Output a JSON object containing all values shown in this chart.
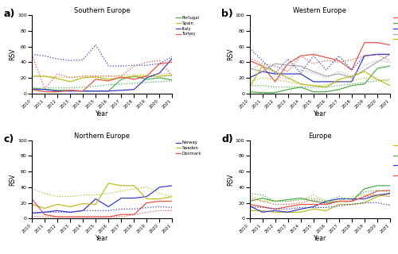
{
  "years": [
    2010,
    2011,
    2012,
    2013,
    2014,
    2015,
    2016,
    2017,
    2018,
    2019,
    2020,
    2021
  ],
  "panel_a": {
    "title": "Southern Europe",
    "solid": {
      "Portugal": {
        "color": "#4daf4a",
        "values": [
          7,
          5,
          4,
          4,
          3,
          3,
          3,
          18,
          22,
          18,
          20,
          17
        ]
      },
      "Spain": {
        "color": "#bcbd22",
        "values": [
          22,
          22,
          19,
          15,
          20,
          21,
          18,
          20,
          22,
          22,
          22,
          23
        ]
      },
      "Italy": {
        "color": "#3a3acc",
        "values": [
          5,
          5,
          3,
          3,
          3,
          3,
          3,
          4,
          5,
          20,
          26,
          45
        ]
      },
      "Turkey": {
        "color": "#e8534a",
        "values": [
          5,
          2,
          2,
          4,
          3,
          18,
          16,
          21,
          18,
          22,
          38,
          40
        ]
      }
    },
    "dotted": {
      "Portugal": {
        "color": "#4daf4a",
        "values": [
          6,
          7,
          7,
          7,
          8,
          9,
          11,
          12,
          13,
          14,
          15,
          16
        ]
      },
      "Spain": {
        "color": "#bcbd22",
        "values": [
          22,
          22,
          21,
          21,
          22,
          22,
          22,
          23,
          24,
          24,
          25,
          25
        ]
      },
      "Italy": {
        "color": "#3a3acc",
        "values": [
          50,
          48,
          44,
          42,
          43,
          62,
          35,
          35,
          36,
          36,
          38,
          47
        ]
      },
      "Turkey": {
        "color": "#e8534a",
        "values": [
          50,
          6,
          25,
          20,
          22,
          22,
          22,
          22,
          35,
          40,
          42,
          22
        ]
      }
    }
  },
  "panel_b": {
    "title": "Western Europe",
    "solid": {
      "UK": {
        "color": "#e8534a",
        "values": [
          42,
          35,
          15,
          38,
          48,
          50,
          46,
          42,
          30,
          65,
          65,
          62
        ]
      },
      "Ireland": {
        "color": "#4daf4a",
        "values": [
          2,
          1,
          1,
          5,
          8,
          2,
          2,
          5,
          10,
          12,
          32,
          35
        ]
      },
      "France": {
        "color": "#3a3acc",
        "values": [
          20,
          28,
          25,
          25,
          25,
          15,
          15,
          15,
          15,
          48,
          50,
          50
        ]
      },
      "Germany": {
        "color": "#aaaaaa",
        "values": [
          32,
          28,
          38,
          36,
          35,
          28,
          22,
          25,
          20,
          30,
          40,
          50
        ]
      },
      "Netherlands": {
        "color": "#bcbd22",
        "values": [
          8,
          35,
          28,
          20,
          12,
          10,
          8,
          18,
          22,
          28,
          18,
          10
        ]
      }
    },
    "dotted": {
      "UK": {
        "color": "#e8534a",
        "values": [
          45,
          38,
          35,
          28,
          48,
          38,
          42,
          40,
          43,
          48,
          50,
          42
        ]
      },
      "Ireland": {
        "color": "#4daf4a",
        "values": [
          10,
          10,
          8,
          8,
          8,
          8,
          8,
          10,
          12,
          14,
          16,
          18
        ]
      },
      "France": {
        "color": "#3a3acc",
        "values": [
          58,
          42,
          26,
          44,
          26,
          48,
          30,
          48,
          30,
          48,
          50,
          50
        ]
      },
      "Germany": {
        "color": "#aaaaaa",
        "values": [
          30,
          38,
          22,
          18,
          30,
          26,
          20,
          28,
          22,
          36,
          42,
          40
        ]
      },
      "Netherlands": {
        "color": "#bcbd22",
        "values": [
          15,
          20,
          18,
          15,
          12,
          10,
          10,
          15,
          16,
          20,
          18,
          15
        ]
      }
    }
  },
  "panel_c": {
    "title": "Northern Europe",
    "solid": {
      "Norway": {
        "color": "#3a3acc",
        "values": [
          7,
          8,
          10,
          8,
          10,
          25,
          15,
          26,
          26,
          28,
          40,
          42
        ]
      },
      "Sweden": {
        "color": "#bcbd22",
        "values": [
          18,
          13,
          18,
          15,
          19,
          18,
          45,
          42,
          42,
          25,
          25,
          28
        ]
      },
      "Denmark": {
        "color": "#e8534a",
        "values": [
          25,
          5,
          2,
          2,
          2,
          2,
          2,
          5,
          5,
          20,
          22,
          22
        ]
      }
    },
    "dotted": {
      "Norway": {
        "color": "#3a3acc",
        "values": [
          6,
          8,
          8,
          8,
          10,
          10,
          10,
          12,
          12,
          14,
          15,
          14
        ]
      },
      "Sweden": {
        "color": "#bcbd22",
        "values": [
          38,
          32,
          28,
          28,
          30,
          30,
          32,
          35,
          38,
          40,
          32,
          28
        ]
      },
      "Denmark": {
        "color": "#e8534a",
        "values": [
          3,
          2,
          2,
          2,
          2,
          2,
          2,
          2,
          5,
          8,
          10,
          10
        ]
      }
    }
  },
  "panel_d": {
    "title": "Europe",
    "solid": {
      "Southern\nEurope": {
        "color": "#bcbd22",
        "values": [
          10,
          10,
          8,
          8,
          8,
          12,
          10,
          18,
          18,
          20,
          28,
          32
        ]
      },
      "Western\nEurope": {
        "color": "#4daf4a",
        "values": [
          22,
          26,
          22,
          24,
          26,
          22,
          20,
          22,
          22,
          38,
          42,
          42
        ]
      },
      "Northern\nEurope": {
        "color": "#3a3acc",
        "values": [
          16,
          8,
          10,
          8,
          12,
          15,
          22,
          25,
          25,
          25,
          30,
          32
        ]
      },
      "Mean\n(All regions)": {
        "color": "#e8534a",
        "values": [
          18,
          15,
          12,
          15,
          18,
          18,
          18,
          22,
          22,
          28,
          35,
          36
        ]
      }
    },
    "dotted": {
      "Southern\nEurope": {
        "color": "#bcbd22",
        "values": [
          30,
          22,
          22,
          22,
          24,
          30,
          22,
          22,
          28,
          30,
          30,
          28
        ]
      },
      "Western\nEurope": {
        "color": "#4daf4a",
        "values": [
          32,
          30,
          22,
          22,
          24,
          26,
          22,
          28,
          24,
          34,
          36,
          34
        ]
      },
      "Northern\nEurope": {
        "color": "#3a3acc",
        "values": [
          15,
          14,
          12,
          12,
          14,
          14,
          14,
          16,
          18,
          20,
          20,
          17
        ]
      },
      "Mean\n(All regions)": {
        "color": "#e8534a",
        "values": [
          26,
          22,
          18,
          18,
          20,
          24,
          18,
          22,
          22,
          28,
          30,
          28
        ]
      }
    }
  }
}
